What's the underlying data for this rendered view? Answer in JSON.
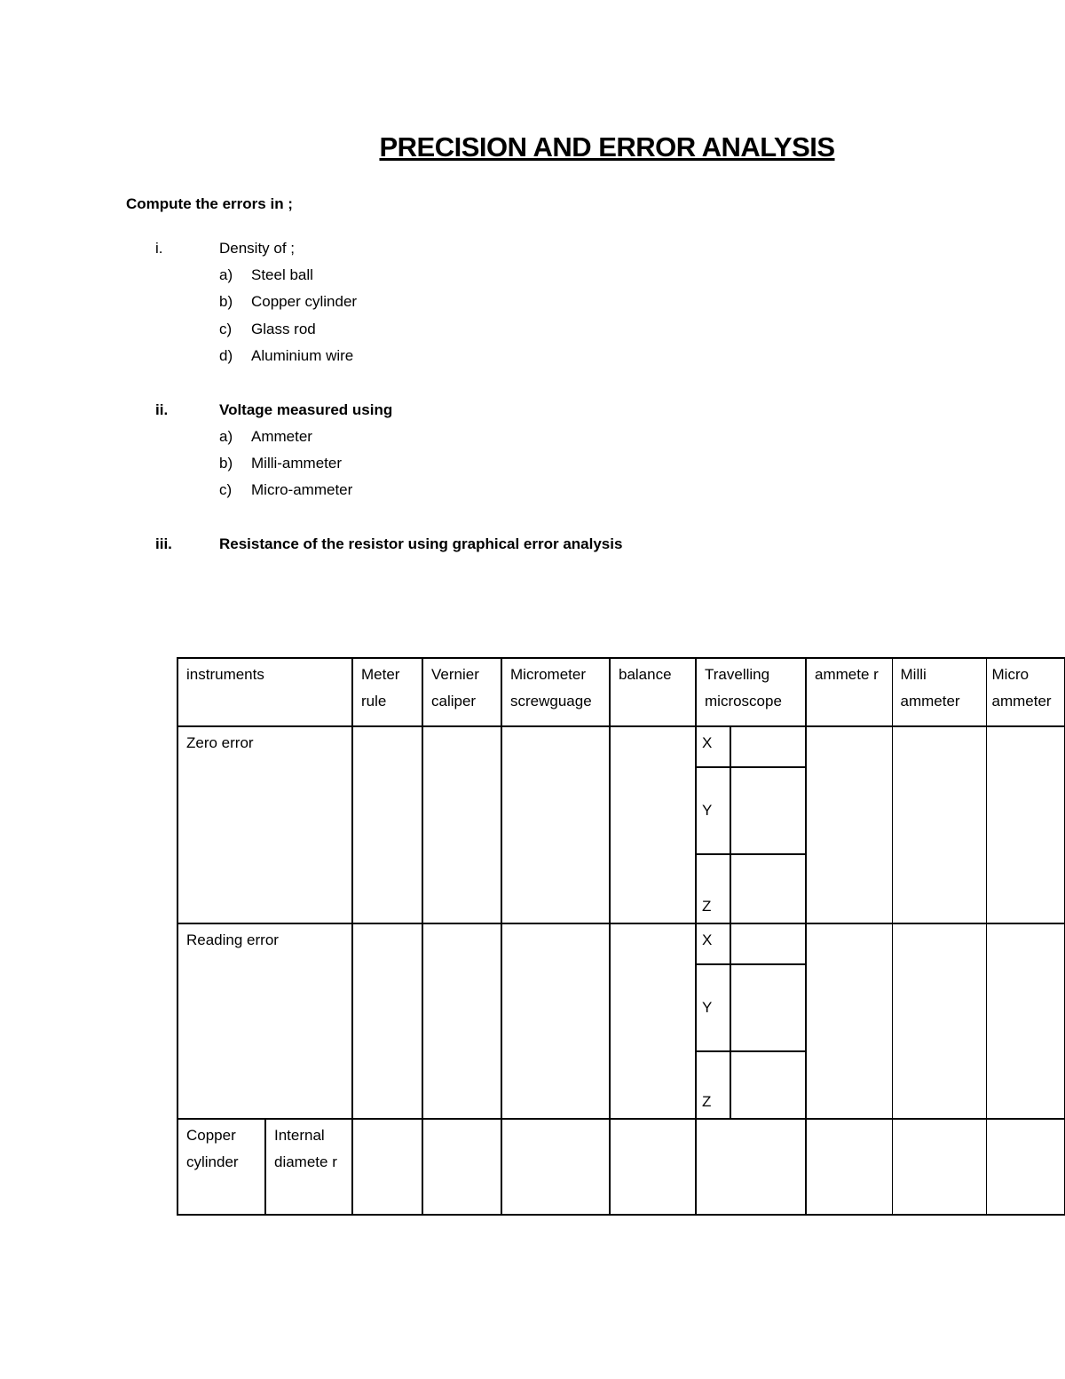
{
  "title": "PRECISION AND ERROR ANALYSIS",
  "intro": "Compute the errors in ;",
  "sections": [
    {
      "numeral": "i.",
      "heading": "Density of ;",
      "items": [
        {
          "letter": "a)",
          "text": "Steel ball"
        },
        {
          "letter": "b)",
          "text": "Copper cylinder"
        },
        {
          "letter": "c)",
          "text": "Glass rod"
        },
        {
          "letter": "d)",
          "text": "Aluminium wire"
        }
      ]
    },
    {
      "numeral": "ii.",
      "heading": "Voltage measured using",
      "items": [
        {
          "letter": "a)",
          "text": "Ammeter"
        },
        {
          "letter": "b)",
          "text": "Milli-ammeter"
        },
        {
          "letter": "c)",
          "text": "Micro-ammeter"
        }
      ]
    },
    {
      "numeral": "iii.",
      "heading": "Resistance of the resistor using graphical error analysis",
      "items": []
    }
  ],
  "table": {
    "headers": [
      "instruments",
      "Meter rule",
      "Vernier caliper",
      "Micrometer screwguage",
      "balance",
      "Travelling microscope",
      "ammete r",
      "Milli ammeter",
      "Micro ammeter"
    ],
    "rows": {
      "zero_error": "Zero error",
      "reading_error": "Reading error",
      "copper_cylinder": "Copper cylinder",
      "internal_diameter": "Internal diamete r"
    },
    "axes": [
      "X",
      "Y",
      "Z"
    ]
  }
}
